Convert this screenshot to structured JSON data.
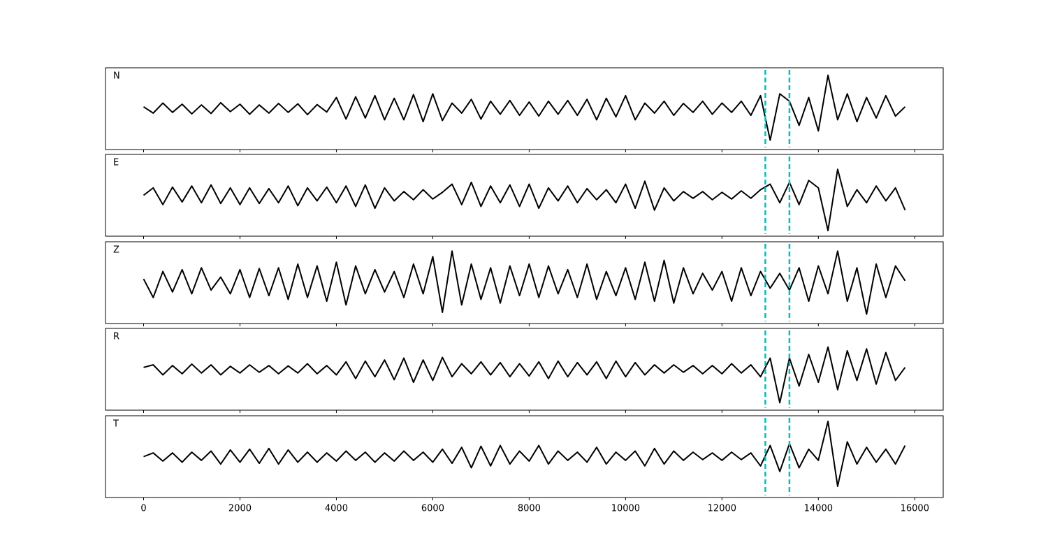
{
  "chart_data": {
    "type": "line",
    "subplots": true,
    "x": [
      0,
      200,
      400,
      600,
      800,
      1000,
      1200,
      1400,
      1600,
      1800,
      2000,
      2200,
      2400,
      2600,
      2800,
      3000,
      3200,
      3400,
      3600,
      3800,
      4000,
      4200,
      4400,
      4600,
      4800,
      5000,
      5200,
      5400,
      5600,
      5800,
      6000,
      6200,
      6400,
      6600,
      6800,
      7000,
      7200,
      7400,
      7600,
      7800,
      8000,
      8200,
      8400,
      8600,
      8800,
      9000,
      9200,
      9400,
      9600,
      9800,
      10000,
      10200,
      10400,
      10600,
      10800,
      11000,
      11200,
      11400,
      11600,
      11800,
      12000,
      12200,
      12400,
      12600,
      12800,
      13000,
      13200,
      13400,
      13600,
      13800,
      14000,
      14200,
      14400,
      14600,
      14800,
      15000,
      15200,
      15400,
      15600,
      15800
    ],
    "xlim": [
      -790,
      16590
    ],
    "xticks": [
      0,
      2000,
      4000,
      6000,
      8000,
      10000,
      12000,
      14000,
      16000
    ],
    "ylim": [
      -1.1,
      1.1
    ],
    "vlines": [
      12900,
      13400
    ],
    "vline_color": "#00bfbf",
    "series": [
      {
        "name": "N",
        "color": "#000000",
        "values": [
          0.05,
          -0.12,
          0.15,
          -0.1,
          0.12,
          -0.14,
          0.1,
          -0.13,
          0.16,
          -0.08,
          0.12,
          -0.15,
          0.1,
          -0.12,
          0.14,
          -0.1,
          0.13,
          -0.16,
          0.11,
          -0.09,
          0.3,
          -0.28,
          0.32,
          -0.25,
          0.35,
          -0.3,
          0.28,
          -0.3,
          0.38,
          -0.35,
          0.4,
          -0.32,
          0.15,
          -0.12,
          0.25,
          -0.28,
          0.2,
          -0.15,
          0.22,
          -0.18,
          0.18,
          -0.2,
          0.2,
          -0.15,
          0.22,
          -0.18,
          0.25,
          -0.3,
          0.28,
          -0.22,
          0.35,
          -0.3,
          0.15,
          -0.12,
          0.2,
          -0.18,
          0.14,
          -0.1,
          0.2,
          -0.15,
          0.15,
          -0.1,
          0.2,
          -0.18,
          0.35,
          -0.85,
          0.4,
          0.2,
          -0.45,
          0.3,
          -0.6,
          0.9,
          -0.3,
          0.4,
          -0.35,
          0.3,
          -0.25,
          0.35,
          -0.2,
          0.05
        ]
      },
      {
        "name": "E",
        "color": "#000000",
        "values": [
          0.0,
          0.2,
          -0.25,
          0.22,
          -0.18,
          0.25,
          -0.2,
          0.28,
          -0.22,
          0.2,
          -0.25,
          0.2,
          -0.22,
          0.18,
          -0.2,
          0.25,
          -0.28,
          0.2,
          -0.15,
          0.22,
          -0.2,
          0.25,
          -0.3,
          0.28,
          -0.35,
          0.2,
          -0.15,
          0.1,
          -0.12,
          0.15,
          -0.1,
          0.08,
          0.3,
          -0.25,
          0.35,
          -0.3,
          0.25,
          -0.2,
          0.28,
          -0.3,
          0.3,
          -0.35,
          0.2,
          -0.15,
          0.25,
          -0.2,
          0.18,
          -0.12,
          0.15,
          -0.2,
          0.3,
          -0.35,
          0.38,
          -0.4,
          0.2,
          -0.15,
          0.1,
          -0.08,
          0.1,
          -0.12,
          0.08,
          -0.1,
          0.12,
          -0.08,
          0.15,
          0.3,
          -0.2,
          0.35,
          -0.25,
          0.4,
          0.2,
          -0.95,
          0.7,
          -0.3,
          0.15,
          -0.2,
          0.25,
          -0.15,
          0.2,
          -0.4
        ]
      },
      {
        "name": "Z",
        "color": "#000000",
        "values": [
          0.1,
          -0.4,
          0.3,
          -0.25,
          0.35,
          -0.3,
          0.4,
          -0.2,
          0.15,
          -0.3,
          0.35,
          -0.4,
          0.38,
          -0.35,
          0.4,
          -0.45,
          0.5,
          -0.4,
          0.45,
          -0.5,
          0.55,
          -0.6,
          0.45,
          -0.3,
          0.35,
          -0.25,
          0.3,
          -0.4,
          0.5,
          -0.3,
          0.7,
          -0.8,
          0.85,
          -0.6,
          0.5,
          -0.45,
          0.4,
          -0.55,
          0.45,
          -0.35,
          0.5,
          -0.4,
          0.45,
          -0.3,
          0.35,
          -0.4,
          0.5,
          -0.45,
          0.3,
          -0.35,
          0.4,
          -0.45,
          0.55,
          -0.5,
          0.6,
          -0.55,
          0.4,
          -0.3,
          0.25,
          -0.2,
          0.3,
          -0.5,
          0.4,
          -0.35,
          0.3,
          -0.15,
          0.25,
          -0.2,
          0.4,
          -0.5,
          0.45,
          -0.3,
          0.85,
          -0.5,
          0.4,
          -0.85,
          0.5,
          -0.4,
          0.45,
          0.05
        ]
      },
      {
        "name": "R",
        "color": "#000000",
        "values": [
          0.05,
          0.12,
          -0.15,
          0.1,
          -0.12,
          0.14,
          -0.1,
          0.12,
          -0.15,
          0.08,
          -0.1,
          0.12,
          -0.08,
          0.1,
          -0.12,
          0.09,
          -0.1,
          0.15,
          -0.12,
          0.1,
          -0.15,
          0.2,
          -0.25,
          0.22,
          -0.2,
          0.25,
          -0.28,
          0.3,
          -0.35,
          0.25,
          -0.3,
          0.32,
          -0.2,
          0.15,
          -0.12,
          0.2,
          -0.15,
          0.18,
          -0.2,
          0.15,
          -0.18,
          0.2,
          -0.25,
          0.22,
          -0.2,
          0.18,
          -0.15,
          0.2,
          -0.25,
          0.22,
          -0.2,
          0.18,
          -0.15,
          0.12,
          -0.1,
          0.12,
          -0.08,
          0.1,
          -0.12,
          0.1,
          -0.12,
          0.15,
          -0.1,
          0.12,
          -0.2,
          0.3,
          -0.9,
          0.3,
          -0.45,
          0.4,
          -0.35,
          0.6,
          -0.55,
          0.5,
          -0.3,
          0.55,
          -0.4,
          0.45,
          -0.3,
          0.05
        ]
      },
      {
        "name": "T",
        "color": "#000000",
        "values": [
          0.0,
          0.1,
          -0.12,
          0.1,
          -0.15,
          0.12,
          -0.1,
          0.15,
          -0.2,
          0.18,
          -0.15,
          0.2,
          -0.18,
          0.22,
          -0.2,
          0.18,
          -0.15,
          0.12,
          -0.15,
          0.1,
          -0.12,
          0.15,
          -0.1,
          0.12,
          -0.15,
          0.1,
          -0.12,
          0.15,
          -0.1,
          0.12,
          -0.15,
          0.2,
          -0.18,
          0.25,
          -0.3,
          0.28,
          -0.25,
          0.3,
          -0.2,
          0.15,
          -0.12,
          0.3,
          -0.2,
          0.15,
          -0.1,
          0.12,
          -0.15,
          0.25,
          -0.2,
          0.12,
          -0.1,
          0.15,
          -0.25,
          0.22,
          -0.2,
          0.15,
          -0.1,
          0.12,
          -0.08,
          0.1,
          -0.1,
          0.12,
          -0.08,
          0.1,
          -0.25,
          0.3,
          -0.4,
          0.35,
          -0.3,
          0.2,
          -0.1,
          0.95,
          -0.8,
          0.4,
          -0.2,
          0.25,
          -0.15,
          0.2,
          -0.2,
          0.3
        ]
      }
    ]
  }
}
